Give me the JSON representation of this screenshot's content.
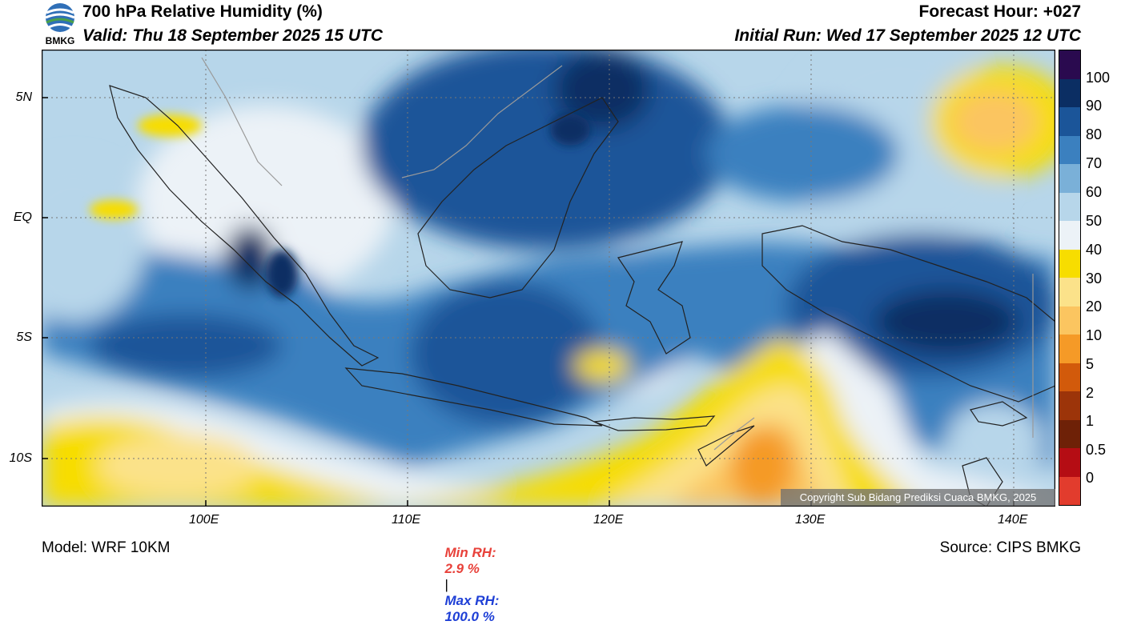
{
  "header": {
    "logo_text": "BMKG",
    "title": "700 hPa Relative Humidity (%)",
    "valid": "Valid: Thu 18 September 2025 15 UTC",
    "forecast_hour": "Forecast Hour: +027",
    "initial_run": "Initial Run: Wed 17 September 2025 12 UTC"
  },
  "axes": {
    "lat_labels": [
      "5N",
      "EQ",
      "5S",
      "10S"
    ],
    "lon_labels": [
      "100E",
      "110E",
      "120E",
      "130E",
      "140E"
    ]
  },
  "colorbar": {
    "labels": [
      "100",
      "90",
      "80",
      "70",
      "60",
      "50",
      "40",
      "30",
      "20",
      "10",
      "5",
      "2",
      "1",
      "0.5",
      "0"
    ],
    "colors": [
      "#2a0a4f",
      "#0b2e63",
      "#1b5599",
      "#3b80bf",
      "#7ab0d8",
      "#b7d6ea",
      "#ecf2f7",
      "#f7dd00",
      "#fbe28a",
      "#fbc560",
      "#f59a27",
      "#d25a0b",
      "#9c3409",
      "#6e2107",
      "#b50d14",
      "#e23c2d"
    ]
  },
  "stats": {
    "min_label": "Min RH:",
    "min_value": "2.9 %",
    "separator": "|",
    "max_label": "Max RH:",
    "max_value": "100.0 %"
  },
  "copyright": "Copyright Sub Bidang Prediksi Cuaca BMKG, 2025",
  "footer": {
    "model": "Model: WRF 10KM",
    "source": "Source: CIPS BMKG"
  }
}
